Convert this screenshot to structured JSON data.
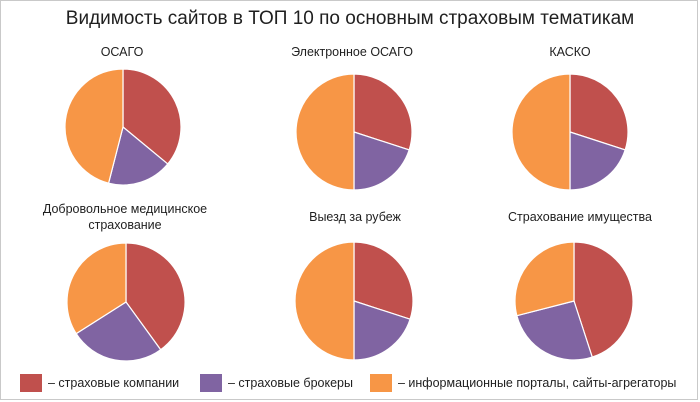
{
  "title": "Видимость сайтов в ТОП 10 по основным страховым тематикам",
  "colors": {
    "insurers": "#c0504d",
    "brokers": "#8064a2",
    "portals": "#f79646"
  },
  "legend": [
    {
      "label": "– страховые компании",
      "color": "#c0504d"
    },
    {
      "label": "– страховые брокеры",
      "color": "#8064a2"
    },
    {
      "label": "– информационные порталы, сайты-агрегаторы",
      "color": "#f79646"
    }
  ],
  "chart_data": [
    {
      "type": "pie",
      "title": "ОСАГО",
      "categories": [
        "страховые компании",
        "страховые брокеры",
        "информационные порталы, сайты-агрегаторы"
      ],
      "values": [
        36,
        18,
        46
      ]
    },
    {
      "type": "pie",
      "title": "Электронное ОСАГО",
      "categories": [
        "страховые компании",
        "страховые брокеры",
        "информационные порталы, сайты-агрегаторы"
      ],
      "values": [
        30,
        20,
        50
      ]
    },
    {
      "type": "pie",
      "title": "КАСКО",
      "categories": [
        "страховые компании",
        "страховые брокеры",
        "информационные порталы, сайты-агрегаторы"
      ],
      "values": [
        30,
        20,
        50
      ]
    },
    {
      "type": "pie",
      "title": "Добровольное медицинское страхование",
      "title_lines": [
        "Добровольное медицинское",
        "страхование"
      ],
      "categories": [
        "страховые компании",
        "страховые брокеры",
        "информационные порталы, сайты-агрегаторы"
      ],
      "values": [
        40,
        26,
        34
      ]
    },
    {
      "type": "pie",
      "title": "Выезд за рубеж",
      "categories": [
        "страховые компании",
        "страховые брокеры",
        "информационные порталы, сайты-агрегаторы"
      ],
      "values": [
        30,
        20,
        50
      ]
    },
    {
      "type": "pie",
      "title": "Страхование имущества",
      "categories": [
        "страховые компании",
        "страховые брокеры",
        "информационные порталы, сайты-агрегаторы"
      ],
      "values": [
        45,
        26,
        29
      ]
    }
  ]
}
